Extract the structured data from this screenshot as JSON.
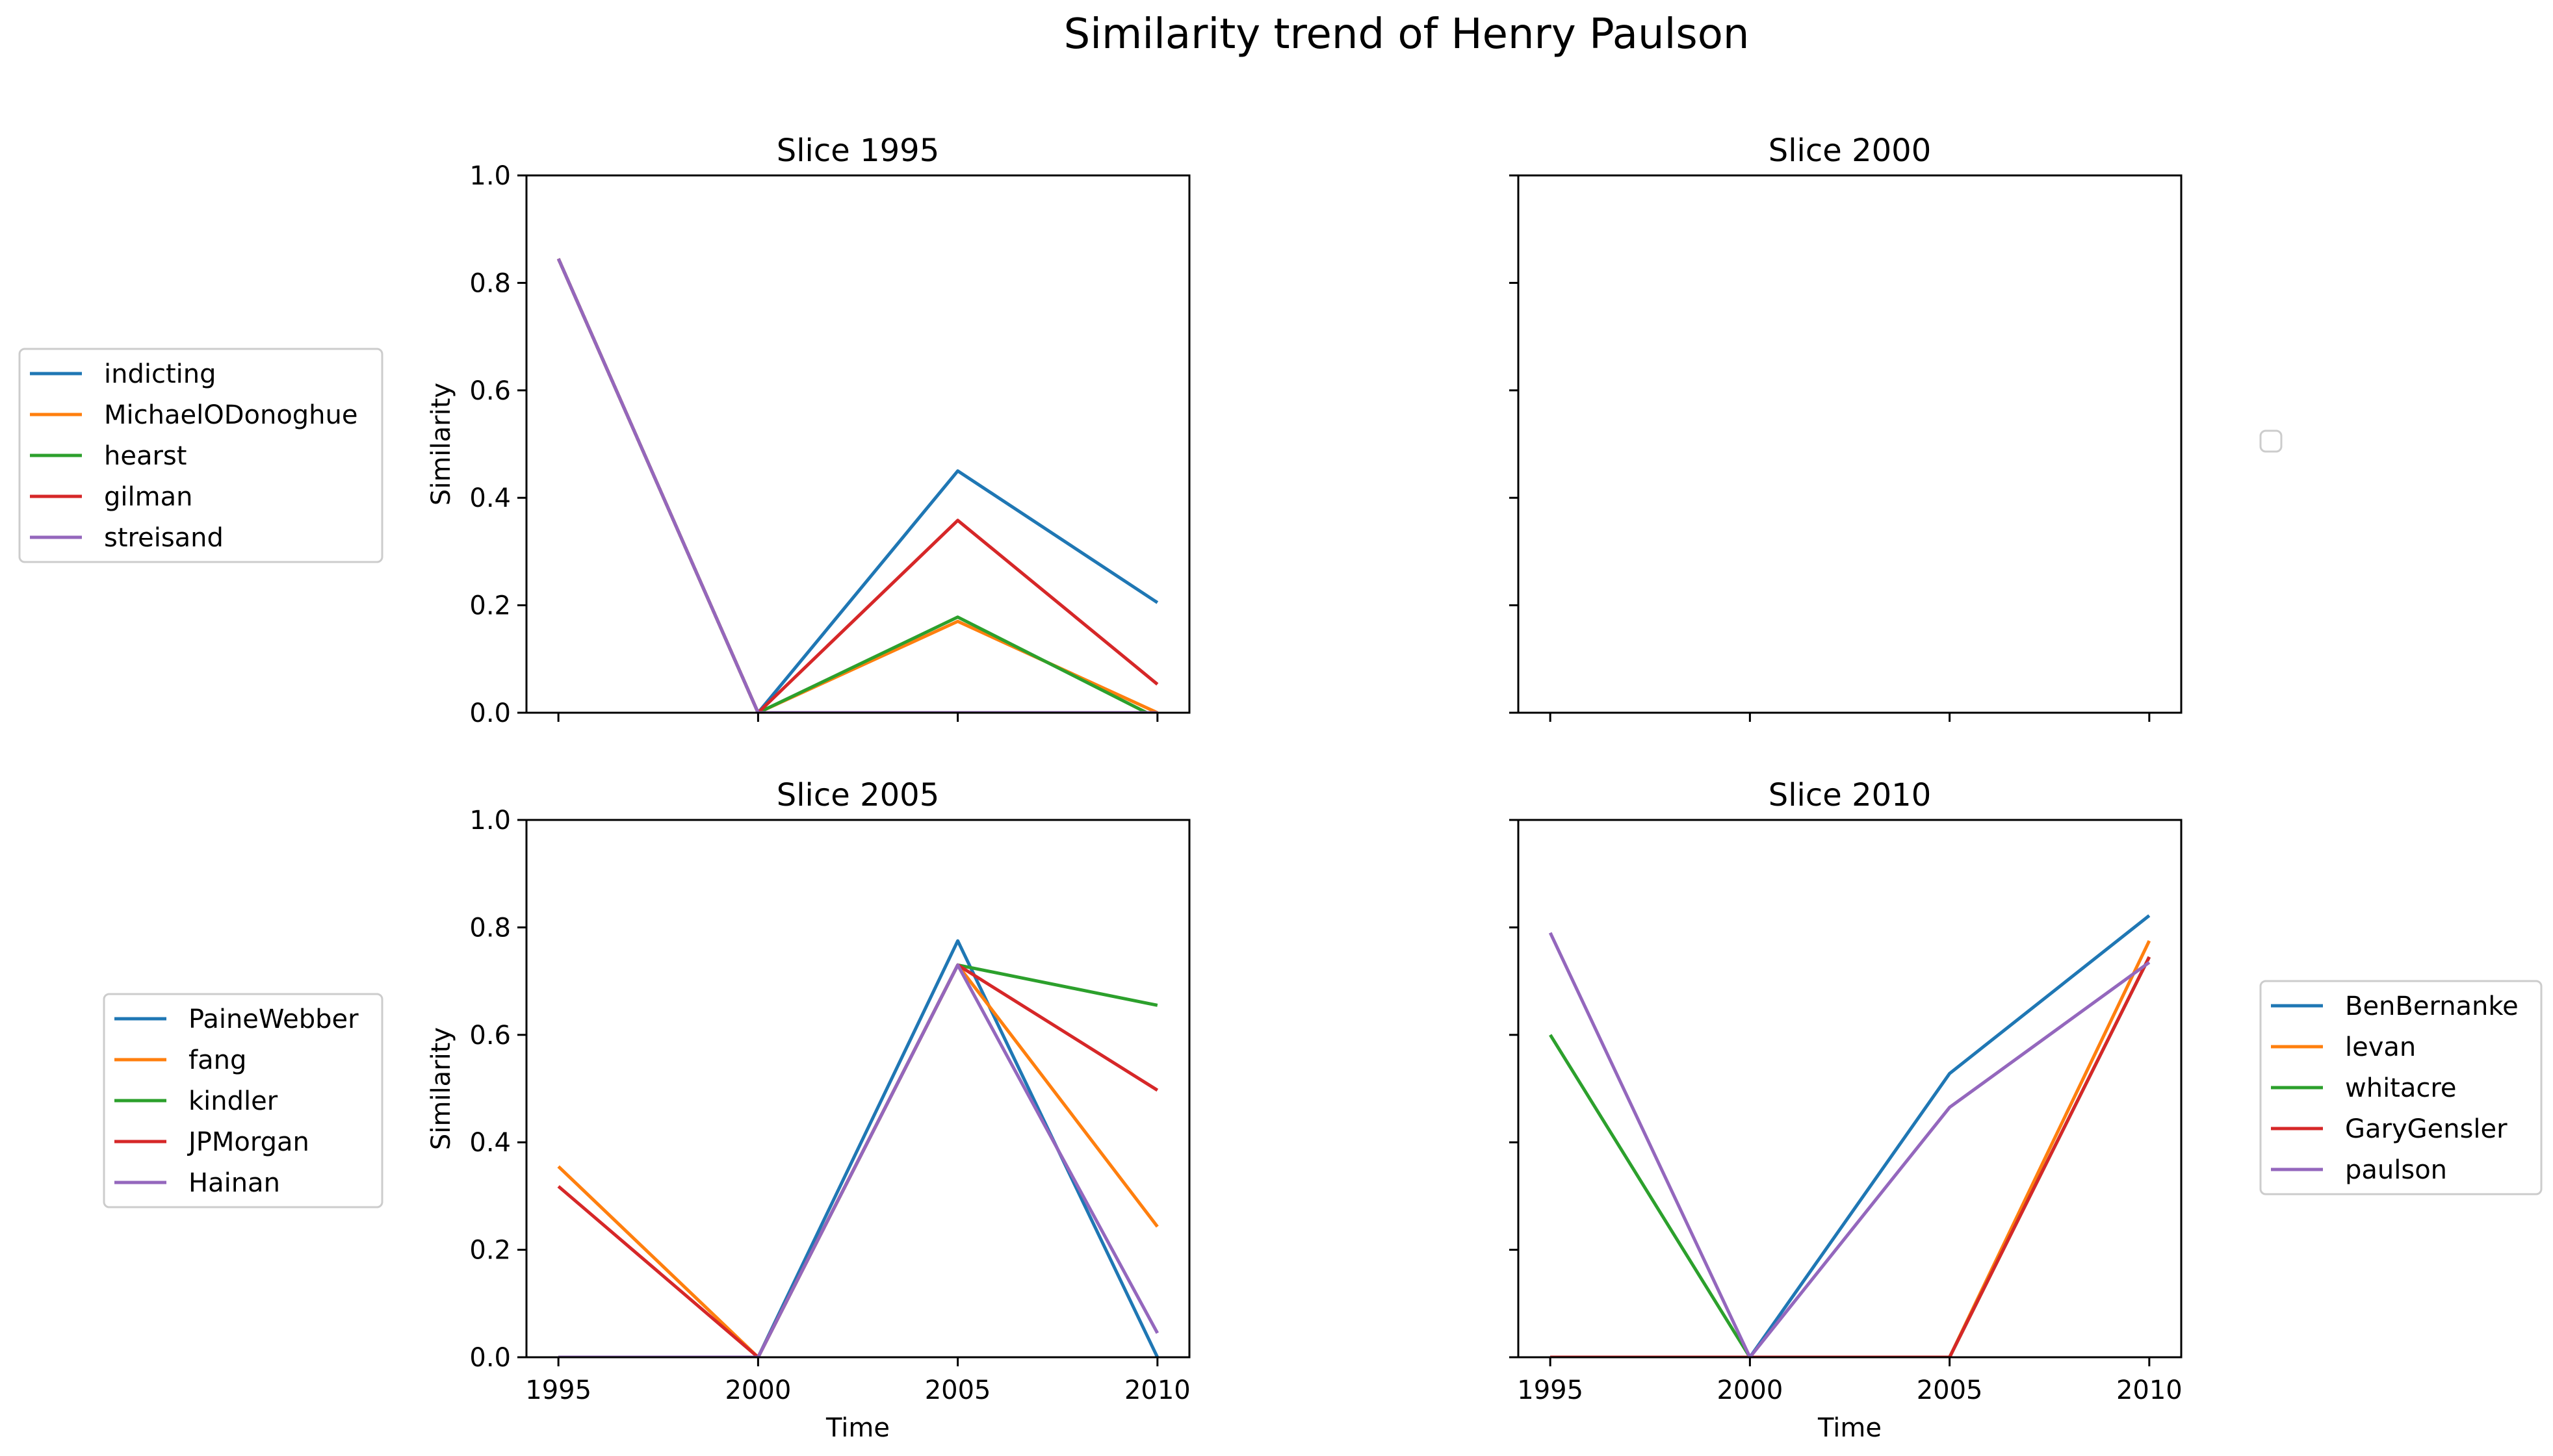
{
  "title": "Similarity trend of Henry Paulson",
  "colors": [
    "#1f77b4",
    "#ff7f0e",
    "#2ca02c",
    "#d62728",
    "#9467bd"
  ],
  "chart_data": [
    {
      "type": "line",
      "title": "Slice 1995",
      "xlabel": "",
      "ylabel": "Similarity",
      "x": [
        1995,
        2000,
        2005,
        2010
      ],
      "xlim": [
        1994.2,
        2010.8
      ],
      "ylim": [
        0,
        1
      ],
      "xticks": [
        "",
        "",
        "",
        ""
      ],
      "yticks": [
        "0.0",
        "0.2",
        "0.4",
        "0.6",
        "0.8",
        "1.0"
      ],
      "legend_position": "left",
      "series": [
        {
          "name": "indicting",
          "values": [
            0.845,
            0.0,
            0.45,
            0.205
          ]
        },
        {
          "name": "MichaelODonoghue",
          "values": [
            0.845,
            0.0,
            0.17,
            0.0
          ]
        },
        {
          "name": "hearst",
          "values": [
            0.845,
            0.0,
            0.178,
            -0.01
          ]
        },
        {
          "name": "gilman",
          "values": [
            0.845,
            0.0,
            0.358,
            0.053
          ]
        },
        {
          "name": "streisand",
          "values": [
            0.845,
            0.0,
            0.0,
            0.0
          ]
        }
      ]
    },
    {
      "type": "line",
      "title": "Slice 2000",
      "xlabel": "",
      "ylabel": "",
      "x": [
        1995,
        2000,
        2005,
        2010
      ],
      "xlim": [
        1994.2,
        2010.8
      ],
      "ylim": [
        0,
        1
      ],
      "xticks": [
        "",
        "",
        "",
        ""
      ],
      "yticks": [
        "",
        "",
        "",
        "",
        "",
        ""
      ],
      "legend_position": "right",
      "series": []
    },
    {
      "type": "line",
      "title": "Slice 2005",
      "xlabel": "Time",
      "ylabel": "Similarity",
      "x": [
        1995,
        2000,
        2005,
        2010
      ],
      "xlim": [
        1994.2,
        2010.8
      ],
      "ylim": [
        0,
        1
      ],
      "xticks": [
        "1995",
        "2000",
        "2005",
        "2010"
      ],
      "yticks": [
        "0.0",
        "0.2",
        "0.4",
        "0.6",
        "0.8",
        "1.0"
      ],
      "legend_position": "left",
      "series": [
        {
          "name": "PaineWebber",
          "values": [
            0.0,
            0.0,
            0.775,
            0.0
          ]
        },
        {
          "name": "fang",
          "values": [
            0.355,
            0.0,
            0.73,
            0.243
          ]
        },
        {
          "name": "kindler",
          "values": [
            0.0,
            0.0,
            0.73,
            0.655
          ]
        },
        {
          "name": "JPMorgan",
          "values": [
            0.318,
            0.0,
            0.73,
            0.497
          ]
        },
        {
          "name": "Hainan",
          "values": [
            0.0,
            0.0,
            0.73,
            0.045
          ]
        }
      ]
    },
    {
      "type": "line",
      "title": "Slice 2010",
      "xlabel": "Time",
      "ylabel": "",
      "x": [
        1995,
        2000,
        2005,
        2010
      ],
      "xlim": [
        1994.2,
        2010.8
      ],
      "ylim": [
        0,
        1
      ],
      "xticks": [
        "1995",
        "2000",
        "2005",
        "2010"
      ],
      "yticks": [
        "",
        "",
        "",
        "",
        "",
        ""
      ],
      "legend_position": "right",
      "series": [
        {
          "name": "BenBernanke",
          "values": [
            0.0,
            0.0,
            0.528,
            0.822
          ]
        },
        {
          "name": "levan",
          "values": [
            0.0,
            0.0,
            0.0,
            0.775
          ]
        },
        {
          "name": "whitacre",
          "values": [
            0.6,
            0.0,
            0.0,
            0.745
          ]
        },
        {
          "name": "GaryGensler",
          "values": [
            0.0,
            0.0,
            0.0,
            0.745
          ]
        },
        {
          "name": "paulson",
          "values": [
            0.79,
            0.0,
            0.465,
            0.735
          ]
        }
      ]
    }
  ]
}
